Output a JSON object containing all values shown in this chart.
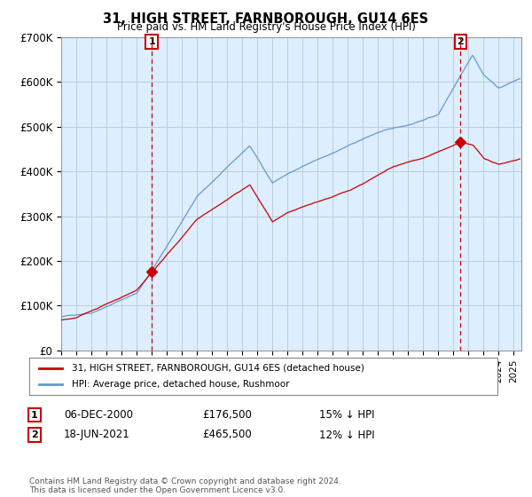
{
  "title": "31, HIGH STREET, FARNBOROUGH, GU14 6ES",
  "subtitle": "Price paid vs. HM Land Registry's House Price Index (HPI)",
  "ylim": [
    0,
    700000
  ],
  "yticks": [
    0,
    100000,
    200000,
    300000,
    400000,
    500000,
    600000,
    700000
  ],
  "ytick_labels": [
    "£0",
    "£100K",
    "£200K",
    "£300K",
    "£400K",
    "£500K",
    "£600K",
    "£700K"
  ],
  "xlim_start": 1995.0,
  "xlim_end": 2025.5,
  "sale1_x": 2001.0,
  "sale1_y": 176500,
  "sale1_label": "1",
  "sale1_date": "06-DEC-2000",
  "sale1_price": "£176,500",
  "sale1_hpi": "15% ↓ HPI",
  "sale2_x": 2021.46,
  "sale2_y": 465500,
  "sale2_label": "2",
  "sale2_date": "18-JUN-2021",
  "sale2_price": "£465,500",
  "sale2_hpi": "12% ↓ HPI",
  "legend_line1": "31, HIGH STREET, FARNBOROUGH, GU14 6ES (detached house)",
  "legend_line2": "HPI: Average price, detached house, Rushmoor",
  "footer": "Contains HM Land Registry data © Crown copyright and database right 2024.\nThis data is licensed under the Open Government Licence v3.0.",
  "line_red_color": "#cc0000",
  "line_blue_color": "#6699cc",
  "chart_bg_color": "#ddeeff",
  "bg_color": "#ffffff",
  "marker_color": "#cc0000",
  "grid_color": "#bbccdd"
}
